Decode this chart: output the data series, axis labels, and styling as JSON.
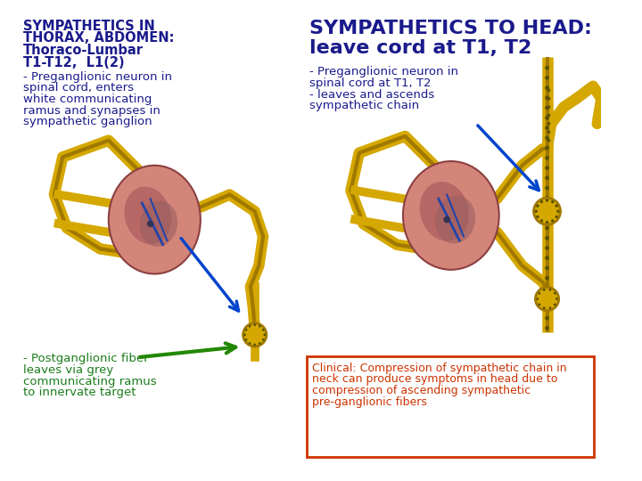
{
  "bg_color": "#ffffff",
  "left_title_lines": [
    "SYMPATHETICS IN",
    "THORAX, ABDOMEN:",
    "Thoraco-Lumbar",
    "T1-T12,  L1(2)"
  ],
  "left_title_color": "#1a1a8c",
  "left_body_lines": [
    "- Preganglionic neuron in",
    "spinal cord, enters",
    "white communicating",
    "ramus and synapses in",
    "sympathetic ganglion"
  ],
  "left_body_color": "#1a1a8c",
  "right_title_lines": [
    "SYMPATHETICS TO HEAD:",
    "leave cord at T1, T2"
  ],
  "right_title_color": "#1a1a8c",
  "right_body_lines": [
    "- Preganglionic neuron in",
    "spinal cord at T1, T2",
    "- leaves and ascends",
    "sympathetic chain"
  ],
  "right_body_color": "#1a1a8c",
  "left_bottom_lines": [
    "- Postganglionic fiber",
    "leaves via grey",
    "communicating ramus",
    "to innervate target"
  ],
  "left_bottom_color": "#1a7c1a",
  "clinical_lines": [
    "Clinical: Compression of sympathetic chain in",
    "neck can produce symptoms in head due to",
    "compression of ascending sympathetic",
    "pre-ganglionic fibers"
  ],
  "clinical_color": "#cc3300",
  "clinical_box_color": "#cc3300",
  "cord_color": "#d4857a",
  "cord_dark": "#b06060",
  "cord_edge": "#8b4040",
  "gold_color": "#d4a800",
  "gold_edge": "#a07800",
  "green_arrow": "#228800",
  "blue_arrow": "#0044cc"
}
